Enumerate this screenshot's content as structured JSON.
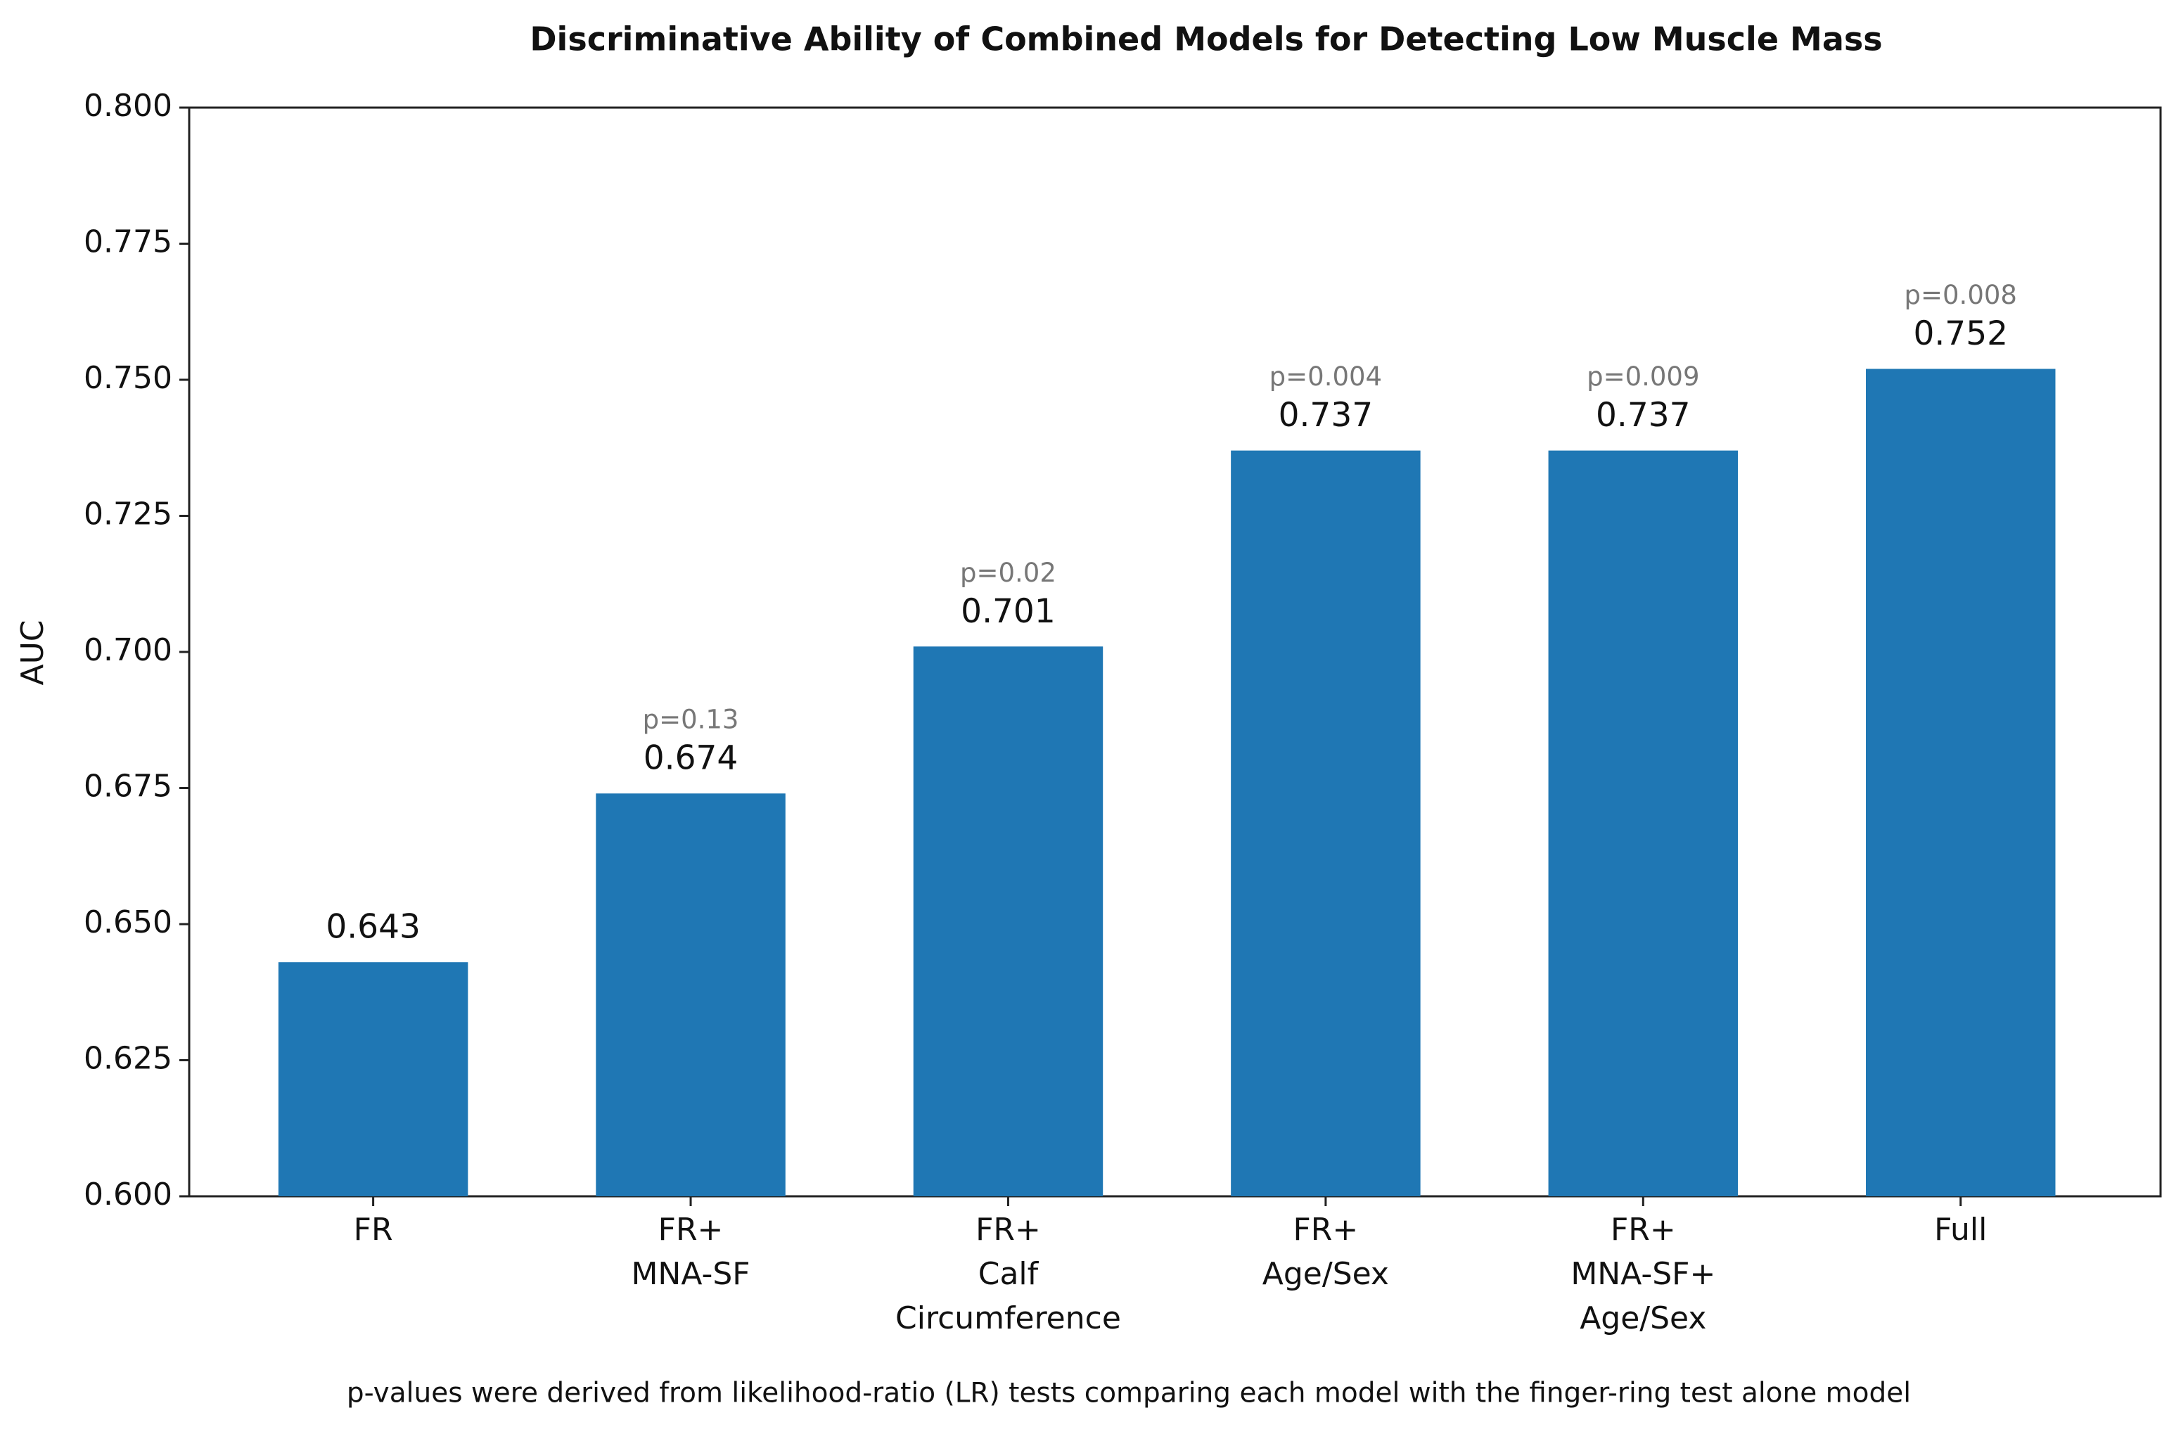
{
  "chart_data": {
    "type": "bar",
    "title": "Discriminative Ability of Combined Models for Detecting Low Muscle Mass",
    "ylabel": "AUC",
    "categories": [
      "FR",
      "FR+\nMNA-SF",
      "FR+\nCalf\nCircumference",
      "FR+\nAge/Sex",
      "FR+\nMNA-SF+\nAge/Sex",
      "Full"
    ],
    "values": [
      0.643,
      0.674,
      0.701,
      0.737,
      0.737,
      0.752
    ],
    "annotations": [
      null,
      "p=0.13",
      "p=0.02",
      "p=0.004",
      "p=0.009",
      "p=0.008"
    ],
    "color": "#1f77b4",
    "ylim": [
      0.6,
      0.8
    ],
    "yticks": [
      {
        "value": 0.6,
        "label": "0.600"
      },
      0.625,
      {
        "value": 0.65,
        "label": "0.650"
      },
      0.675,
      {
        "value": 0.7,
        "label": "0.700"
      },
      0.725,
      {
        "value": 0.75,
        "label": "0.750"
      },
      0.775,
      {
        "value": 0.8,
        "label": "0.800"
      }
    ],
    "footnote": "p-values were derived from likelihood-ratio (LR) tests comparing each model with the finger-ring test alone model"
  }
}
